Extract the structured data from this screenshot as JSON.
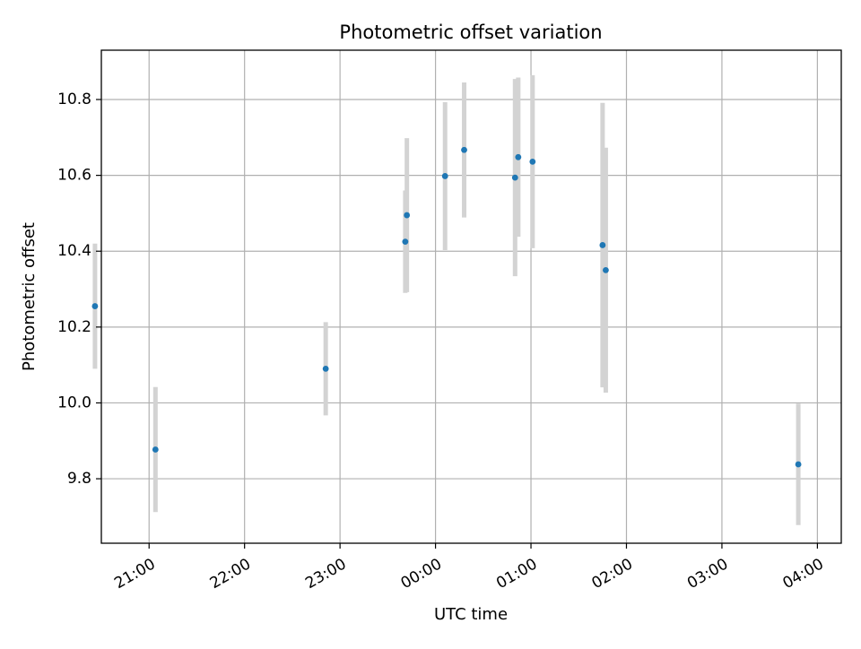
{
  "chart_data": {
    "type": "scatter",
    "title": "Photometric offset variation",
    "xlabel": "UTC time",
    "ylabel": "Photometric offset",
    "x_unit": "hours UTC (times after midnight shown as 24:00+)",
    "xlim": [
      "20:30",
      "28:15"
    ],
    "ylim": [
      9.63,
      10.93
    ],
    "grid": true,
    "x_ticks": [
      {
        "label": "21:00",
        "value": "21:00"
      },
      {
        "label": "22:00",
        "value": "22:00"
      },
      {
        "label": "23:00",
        "value": "23:00"
      },
      {
        "label": "00:00",
        "value": "24:00"
      },
      {
        "label": "01:00",
        "value": "25:00"
      },
      {
        "label": "02:00",
        "value": "26:00"
      },
      {
        "label": "03:00",
        "value": "27:00"
      },
      {
        "label": "04:00",
        "value": "28:00"
      }
    ],
    "y_ticks": [
      {
        "label": "9.8",
        "value": 9.8
      },
      {
        "label": "10.0",
        "value": 10.0
      },
      {
        "label": "10.2",
        "value": 10.2
      },
      {
        "label": "10.4",
        "value": 10.4
      },
      {
        "label": "10.6",
        "value": 10.6
      },
      {
        "label": "10.8",
        "value": 10.8
      }
    ],
    "series": [
      {
        "marker_color": "#1f77b4",
        "errorbar_color": "#d3d3d3",
        "points": [
          {
            "x": "20:26",
            "y": 10.255,
            "err": 0.165
          },
          {
            "x": "21:04",
            "y": 9.877,
            "err": 0.165
          },
          {
            "x": "22:51",
            "y": 10.09,
            "err": 0.123
          },
          {
            "x": "23:41",
            "y": 10.425,
            "err": 0.135
          },
          {
            "x": "23:42",
            "y": 10.495,
            "err": 0.203
          },
          {
            "x": "24:06",
            "y": 10.598,
            "err": 0.195
          },
          {
            "x": "24:18",
            "y": 10.667,
            "err": 0.178
          },
          {
            "x": "24:50",
            "y": 10.594,
            "err": 0.26
          },
          {
            "x": "24:52",
            "y": 10.648,
            "err": 0.21
          },
          {
            "x": "25:01",
            "y": 10.636,
            "err": 0.228
          },
          {
            "x": "25:45",
            "y": 10.416,
            "err": 0.375
          },
          {
            "x": "25:47",
            "y": 10.35,
            "err": 0.323
          },
          {
            "x": "27:48",
            "y": 9.838,
            "err": 0.16
          }
        ]
      }
    ]
  }
}
